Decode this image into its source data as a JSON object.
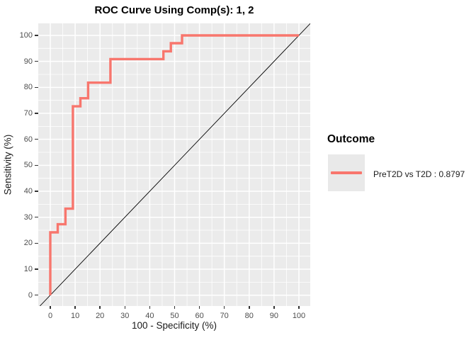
{
  "title": "ROC Curve Using Comp(s): 1, 2",
  "axes": {
    "x_label": "100 - Specificity (%)",
    "y_label": "Sensitivity (%)"
  },
  "legend": {
    "title": "Outcome",
    "position": "right",
    "entries": [
      {
        "label": "PreT2D vs T2D : 0.8797",
        "color": "#F8766D"
      }
    ]
  },
  "colors": {
    "background": "#FFFFFF",
    "panel_bg": "#EBEBEB",
    "gridline": "#FFFFFF",
    "curve": "#F8766D",
    "reference_line": "#000000",
    "tick_label": "#4D4D4D",
    "axis_title": "#1A1A1A",
    "legend_key_bg": "#E9E9E9",
    "tick_mark": "#333333"
  },
  "chart_data": {
    "type": "line",
    "subtype": "roc-step-curve",
    "title": "ROC Curve Using Comp(s): 1, 2",
    "xlabel": "100 - Specificity (%)",
    "ylabel": "Sensitivity (%)",
    "xlim": [
      0,
      100
    ],
    "ylim": [
      0,
      100
    ],
    "x_ticks": [
      0,
      10,
      20,
      30,
      40,
      50,
      60,
      70,
      80,
      90,
      100
    ],
    "y_ticks": [
      0,
      10,
      20,
      30,
      40,
      50,
      60,
      70,
      80,
      90,
      100
    ],
    "minor_gridline_offset": 5,
    "grid": "major+minor",
    "legend_position": "right",
    "series": [
      {
        "name": "PreT2D vs T2D : 0.8797",
        "auc": 0.8797,
        "color": "#F8766D",
        "points": [
          [
            0,
            0
          ],
          [
            0,
            24.2
          ],
          [
            3,
            24.2
          ],
          [
            3,
            27.3
          ],
          [
            6.1,
            27.3
          ],
          [
            6.1,
            33.3
          ],
          [
            9.1,
            33.3
          ],
          [
            9.1,
            72.7
          ],
          [
            12.1,
            72.7
          ],
          [
            12.1,
            75.8
          ],
          [
            15.2,
            75.8
          ],
          [
            15.2,
            81.8
          ],
          [
            24.2,
            81.8
          ],
          [
            24.2,
            90.9
          ],
          [
            45.5,
            90.9
          ],
          [
            45.5,
            93.9
          ],
          [
            48.5,
            93.9
          ],
          [
            48.5,
            97.0
          ],
          [
            53,
            97.0
          ],
          [
            53,
            100
          ],
          [
            100,
            100
          ]
        ]
      }
    ],
    "reference_line": {
      "type": "diagonal",
      "from": [
        0,
        0
      ],
      "to": [
        100,
        100
      ],
      "color": "#000000"
    }
  }
}
